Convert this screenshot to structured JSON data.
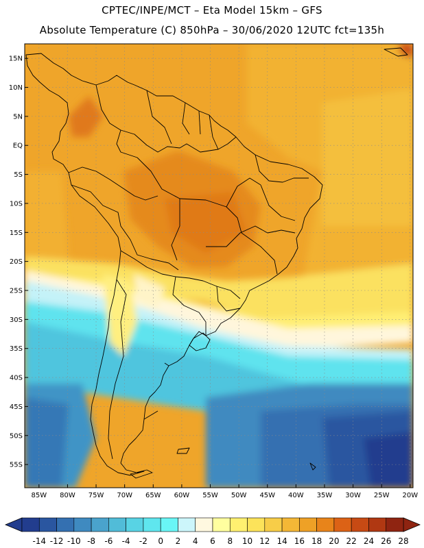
{
  "header": {
    "line1": "CPTEC/INPE/MCT –  Eta Model 15km – GFS",
    "line2": "Absolute Temperature (C) 850hPa – 30/06/2020 12UTC fct=135h"
  },
  "map": {
    "lat_labels": [
      {
        "lat": 15,
        "text": "15N"
      },
      {
        "lat": 10,
        "text": "10N"
      },
      {
        "lat": 5,
        "text": "5N"
      },
      {
        "lat": 0,
        "text": "EQ"
      },
      {
        "lat": -5,
        "text": "5S"
      },
      {
        "lat": -10,
        "text": "10S"
      },
      {
        "lat": -15,
        "text": "15S"
      },
      {
        "lat": -20,
        "text": "20S"
      },
      {
        "lat": -25,
        "text": "25S"
      },
      {
        "lat": -30,
        "text": "30S"
      },
      {
        "lat": -35,
        "text": "35S"
      },
      {
        "lat": -40,
        "text": "40S"
      },
      {
        "lat": -45,
        "text": "45S"
      },
      {
        "lat": -50,
        "text": "50S"
      },
      {
        "lat": -55,
        "text": "55S"
      }
    ],
    "lon_labels": [
      {
        "lon": -85,
        "text": "85W"
      },
      {
        "lon": -80,
        "text": "80W"
      },
      {
        "lon": -75,
        "text": "75W"
      },
      {
        "lon": -70,
        "text": "70W"
      },
      {
        "lon": -65,
        "text": "65W"
      },
      {
        "lon": -60,
        "text": "60W"
      },
      {
        "lon": -55,
        "text": "55W"
      },
      {
        "lon": -50,
        "text": "50W"
      },
      {
        "lon": -45,
        "text": "45W"
      },
      {
        "lon": -40,
        "text": "40W"
      },
      {
        "lon": -35,
        "text": "35W"
      },
      {
        "lon": -30,
        "text": "30W"
      },
      {
        "lon": -25,
        "text": "25W"
      },
      {
        "lon": -20,
        "text": "20W"
      }
    ]
  },
  "colorbar": {
    "labels": [
      "-14",
      "-12",
      "-10",
      "-8",
      "-6",
      "-4",
      "-2",
      "0",
      "2",
      "4",
      "6",
      "8",
      "10",
      "12",
      "14",
      "16",
      "18",
      "20",
      "22",
      "24",
      "26",
      "28"
    ],
    "colors": [
      "#223d8e",
      "#2a56a0",
      "#3470b1",
      "#3f8ac0",
      "#4aa3cc",
      "#51bcd8",
      "#58d3e4",
      "#5fe6ee",
      "#69f6f6",
      "#ccf6fb",
      "#fff8e0",
      "#ffff9f",
      "#fff070",
      "#fce35a",
      "#f7cd48",
      "#f4b736",
      "#eea126",
      "#e8841a",
      "#dc6216",
      "#c74a14",
      "#b03812",
      "#8f2411"
    ]
  }
}
